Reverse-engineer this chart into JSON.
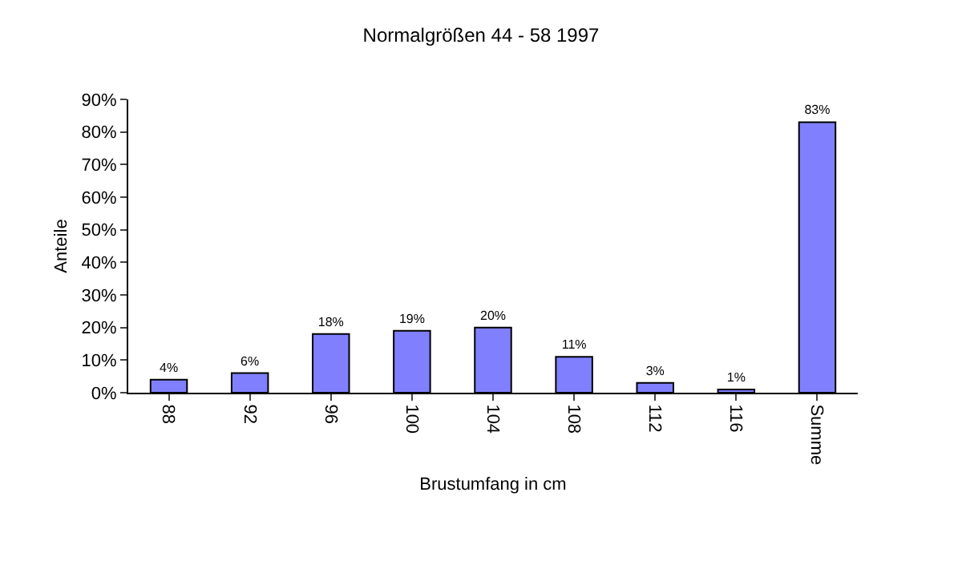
{
  "chart_data": {
    "type": "bar",
    "title": "Normalgrößen 44 - 58 1997",
    "xlabel": "Brustumfang in cm",
    "ylabel": "Anteile",
    "categories": [
      "88",
      "92",
      "96",
      "100",
      "104",
      "108",
      "112",
      "116",
      "Summe"
    ],
    "values": [
      4,
      6,
      18,
      19,
      20,
      11,
      3,
      1,
      83
    ],
    "value_labels": [
      "4%",
      "6%",
      "18%",
      "19%",
      "20%",
      "11%",
      "3%",
      "1%",
      "83%"
    ],
    "color": "#8080ff",
    "ylim": [
      0,
      90
    ],
    "yticks": [
      {
        "value": 0,
        "label": "0%"
      },
      {
        "value": 10,
        "label": "10%"
      },
      {
        "value": 20,
        "label": "20%"
      },
      {
        "value": 30,
        "label": "30%"
      },
      {
        "value": 40,
        "label": "40%"
      },
      {
        "value": 50,
        "label": "50%"
      },
      {
        "value": 60,
        "label": "60%"
      },
      {
        "value": 70,
        "label": "70%"
      },
      {
        "value": 80,
        "label": "80%"
      },
      {
        "value": 90,
        "label": "90%"
      }
    ],
    "grid": false
  }
}
